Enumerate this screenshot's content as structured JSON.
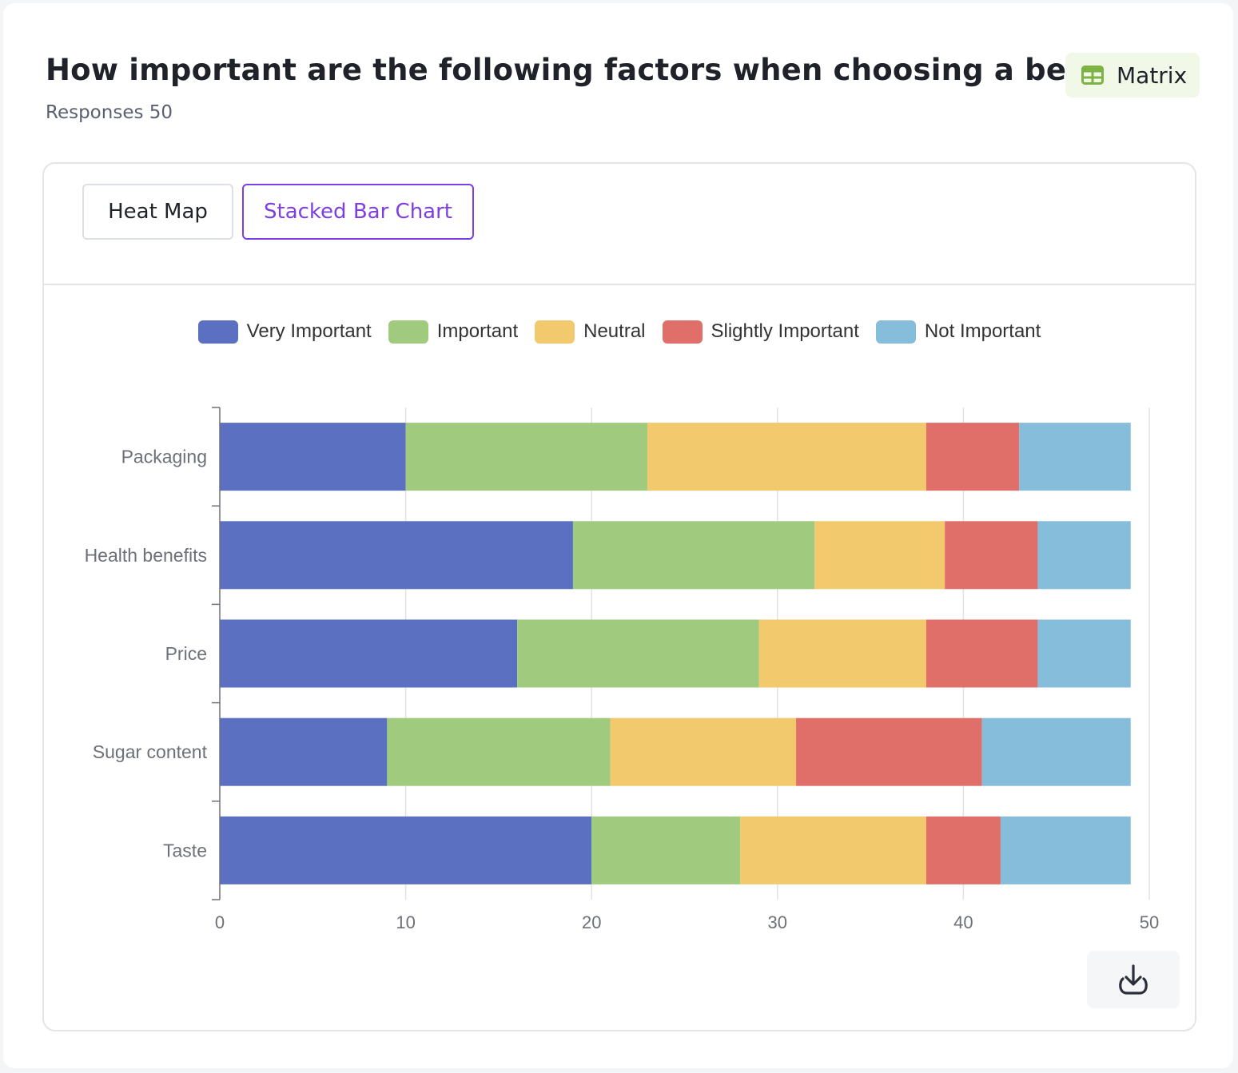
{
  "header": {
    "title": "How important are the following factors when choosing a beverage?",
    "responses": "Responses 50",
    "badge": {
      "label": "Matrix",
      "icon": "table-icon",
      "color": "#7cb342"
    }
  },
  "tabs": [
    {
      "label": "Heat Map",
      "active": false
    },
    {
      "label": "Stacked Bar Chart",
      "active": true,
      "color": "#7b3fe4"
    }
  ],
  "download": {
    "icon": "download-icon"
  },
  "chart_data": {
    "type": "bar",
    "orientation": "horizontal",
    "stacked": true,
    "categories": [
      "Packaging",
      "Health benefits",
      "Price",
      "Sugar content",
      "Taste"
    ],
    "series": [
      {
        "name": "Very Important",
        "color": "#5b70c1",
        "values": [
          10,
          19,
          16,
          9,
          20
        ]
      },
      {
        "name": "Important",
        "color": "#a0cb7f",
        "values": [
          13,
          13,
          13,
          12,
          8
        ]
      },
      {
        "name": "Neutral",
        "color": "#f2c96c",
        "values": [
          15,
          7,
          9,
          10,
          10
        ]
      },
      {
        "name": "Slightly Important",
        "color": "#e06f6a",
        "values": [
          5,
          5,
          6,
          10,
          4
        ]
      },
      {
        "name": "Not Important",
        "color": "#86bdda",
        "values": [
          6,
          5,
          5,
          8,
          7
        ]
      }
    ],
    "xlim": [
      0,
      50
    ],
    "xticks": [
      0,
      10,
      20,
      30,
      40,
      50
    ],
    "grid": true,
    "legend": "top-center"
  }
}
